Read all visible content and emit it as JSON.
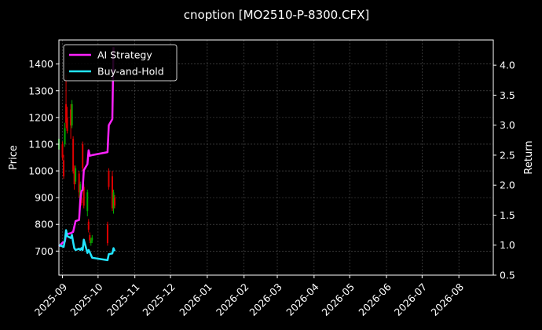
{
  "chart_data": {
    "type": "line",
    "title": "cnoption [MO2510-P-8300.CFX]",
    "xlabel": "",
    "ylabel": "Price",
    "y2label": "Return",
    "ylim": [
      610,
      1490
    ],
    "y2lim": [
      0.5,
      4.42
    ],
    "xlim": [
      "2025-08-29",
      "2026-08-30"
    ],
    "grid": true,
    "legend_position": "top-left",
    "colors": {
      "background": "#000000",
      "text": "#ffffff",
      "grid": "#555555",
      "up_candle": "#00aa00",
      "down_candle": "#dd0000",
      "ai_strategy": "#ff22ff",
      "buy_and_hold": "#22e5ff"
    },
    "yticks": [
      700,
      800,
      900,
      1000,
      1100,
      1200,
      1300,
      1400
    ],
    "y2ticks": [
      "0.5",
      "1.0",
      "1.5",
      "2.0",
      "2.5",
      "3.0",
      "3.5",
      "4.0"
    ],
    "xticks": [
      {
        "date": "2025-09-01",
        "label": "2025-09"
      },
      {
        "date": "2025-10-01",
        "label": "2025-10"
      },
      {
        "date": "2025-11-01",
        "label": "2025-11"
      },
      {
        "date": "2025-12-01",
        "label": "2025-12"
      },
      {
        "date": "2026-01-01",
        "label": "2026-01"
      },
      {
        "date": "2026-02-01",
        "label": "2026-02"
      },
      {
        "date": "2026-03-01",
        "label": "2026-03"
      },
      {
        "date": "2026-04-01",
        "label": "2026-04"
      },
      {
        "date": "2026-05-01",
        "label": "2026-05"
      },
      {
        "date": "2026-06-01",
        "label": "2026-06"
      },
      {
        "date": "2026-07-01",
        "label": "2026-07"
      },
      {
        "date": "2026-08-01",
        "label": "2026-08"
      }
    ],
    "candles": [
      {
        "date": "2025-08-29",
        "open": 1080,
        "close": 1120,
        "high": 1130,
        "low": 1060
      },
      {
        "date": "2025-09-01",
        "open": 1100,
        "close": 1050,
        "high": 1110,
        "low": 1040
      },
      {
        "date": "2025-09-02",
        "open": 1040,
        "close": 980,
        "high": 1060,
        "low": 970
      },
      {
        "date": "2025-09-03",
        "open": 1100,
        "close": 1160,
        "high": 1180,
        "low": 1090
      },
      {
        "date": "2025-09-04",
        "open": 1250,
        "close": 1180,
        "high": 1360,
        "low": 1160
      },
      {
        "date": "2025-09-05",
        "open": 1200,
        "close": 1150,
        "high": 1240,
        "low": 1140
      },
      {
        "date": "2025-09-08",
        "open": 1230,
        "close": 1170,
        "high": 1250,
        "low": 1120
      },
      {
        "date": "2025-09-09",
        "open": 1170,
        "close": 1250,
        "high": 1265,
        "low": 1160
      },
      {
        "date": "2025-09-10",
        "open": 1120,
        "close": 1000,
        "high": 1130,
        "low": 990
      },
      {
        "date": "2025-09-11",
        "open": 1000,
        "close": 950,
        "high": 1020,
        "low": 930
      },
      {
        "date": "2025-09-12",
        "open": 960,
        "close": 1010,
        "high": 1020,
        "low": 950
      },
      {
        "date": "2025-09-15",
        "open": 990,
        "close": 920,
        "high": 1000,
        "low": 900
      },
      {
        "date": "2025-09-16",
        "open": 890,
        "close": 950,
        "high": 960,
        "low": 880
      },
      {
        "date": "2025-09-17",
        "open": 900,
        "close": 880,
        "high": 930,
        "low": 870
      },
      {
        "date": "2025-09-18",
        "open": 1100,
        "close": 1010,
        "high": 1110,
        "low": 1000
      },
      {
        "date": "2025-09-19",
        "open": 940,
        "close": 870,
        "high": 950,
        "low": 860
      },
      {
        "date": "2025-09-22",
        "open": 850,
        "close": 920,
        "high": 930,
        "low": 830
      },
      {
        "date": "2025-09-23",
        "open": 810,
        "close": 780,
        "high": 820,
        "low": 770
      },
      {
        "date": "2025-09-24",
        "open": 760,
        "close": 740,
        "high": 770,
        "low": 730
      },
      {
        "date": "2025-09-25",
        "open": 730,
        "close": 740,
        "high": 750,
        "low": 720
      },
      {
        "date": "2025-09-26",
        "open": 740,
        "close": 750,
        "high": 760,
        "low": 730
      },
      {
        "date": "2025-10-09",
        "open": 800,
        "close": 730,
        "high": 810,
        "low": 720
      },
      {
        "date": "2025-10-10",
        "open": 1000,
        "close": 940,
        "high": 1010,
        "low": 930
      },
      {
        "date": "2025-10-13",
        "open": 980,
        "close": 860,
        "high": 1000,
        "low": 850
      },
      {
        "date": "2025-10-14",
        "open": 860,
        "close": 920,
        "high": 930,
        "low": 840
      },
      {
        "date": "2025-10-15",
        "open": 900,
        "close": 870,
        "high": 910,
        "low": 860
      }
    ],
    "series": [
      {
        "name": "AI Strategy",
        "points": [
          {
            "date": "2025-08-29",
            "value": 0.98
          },
          {
            "date": "2025-09-01",
            "value": 1.04
          },
          {
            "date": "2025-09-03",
            "value": 1.06
          },
          {
            "date": "2025-09-04",
            "value": 1.18
          },
          {
            "date": "2025-09-08",
            "value": 1.2
          },
          {
            "date": "2025-09-10",
            "value": 1.22
          },
          {
            "date": "2025-09-12",
            "value": 1.4
          },
          {
            "date": "2025-09-15",
            "value": 1.42
          },
          {
            "date": "2025-09-16",
            "value": 1.75
          },
          {
            "date": "2025-09-17",
            "value": 1.9
          },
          {
            "date": "2025-09-18",
            "value": 1.92
          },
          {
            "date": "2025-09-19",
            "value": 2.25
          },
          {
            "date": "2025-09-22",
            "value": 2.35
          },
          {
            "date": "2025-09-23",
            "value": 2.58
          },
          {
            "date": "2025-09-24",
            "value": 2.49
          },
          {
            "date": "2025-09-26",
            "value": 2.5
          },
          {
            "date": "2025-10-09",
            "value": 2.55
          },
          {
            "date": "2025-10-10",
            "value": 3.0
          },
          {
            "date": "2025-10-13",
            "value": 3.1
          },
          {
            "date": "2025-10-14",
            "value": 4.3
          }
        ]
      },
      {
        "name": "Buy-and-Hold",
        "points": [
          {
            "date": "2025-08-29",
            "value": 1.0
          },
          {
            "date": "2025-09-01",
            "value": 0.98
          },
          {
            "date": "2025-09-02",
            "value": 0.97
          },
          {
            "date": "2025-09-03",
            "value": 1.08
          },
          {
            "date": "2025-09-04",
            "value": 1.25
          },
          {
            "date": "2025-09-05",
            "value": 1.15
          },
          {
            "date": "2025-09-08",
            "value": 1.12
          },
          {
            "date": "2025-09-09",
            "value": 1.17
          },
          {
            "date": "2025-09-10",
            "value": 1.05
          },
          {
            "date": "2025-09-11",
            "value": 0.95
          },
          {
            "date": "2025-09-12",
            "value": 0.92
          },
          {
            "date": "2025-09-15",
            "value": 0.94
          },
          {
            "date": "2025-09-16",
            "value": 0.92
          },
          {
            "date": "2025-09-17",
            "value": 0.95
          },
          {
            "date": "2025-09-18",
            "value": 0.92
          },
          {
            "date": "2025-09-19",
            "value": 1.09
          },
          {
            "date": "2025-09-22",
            "value": 0.87
          },
          {
            "date": "2025-09-23",
            "value": 0.92
          },
          {
            "date": "2025-09-24",
            "value": 0.88
          },
          {
            "date": "2025-09-26",
            "value": 0.79
          },
          {
            "date": "2025-10-09",
            "value": 0.75
          },
          {
            "date": "2025-10-10",
            "value": 0.85
          },
          {
            "date": "2025-10-13",
            "value": 0.86
          },
          {
            "date": "2025-10-14",
            "value": 0.95
          },
          {
            "date": "2025-10-15",
            "value": 0.9
          }
        ]
      }
    ]
  }
}
